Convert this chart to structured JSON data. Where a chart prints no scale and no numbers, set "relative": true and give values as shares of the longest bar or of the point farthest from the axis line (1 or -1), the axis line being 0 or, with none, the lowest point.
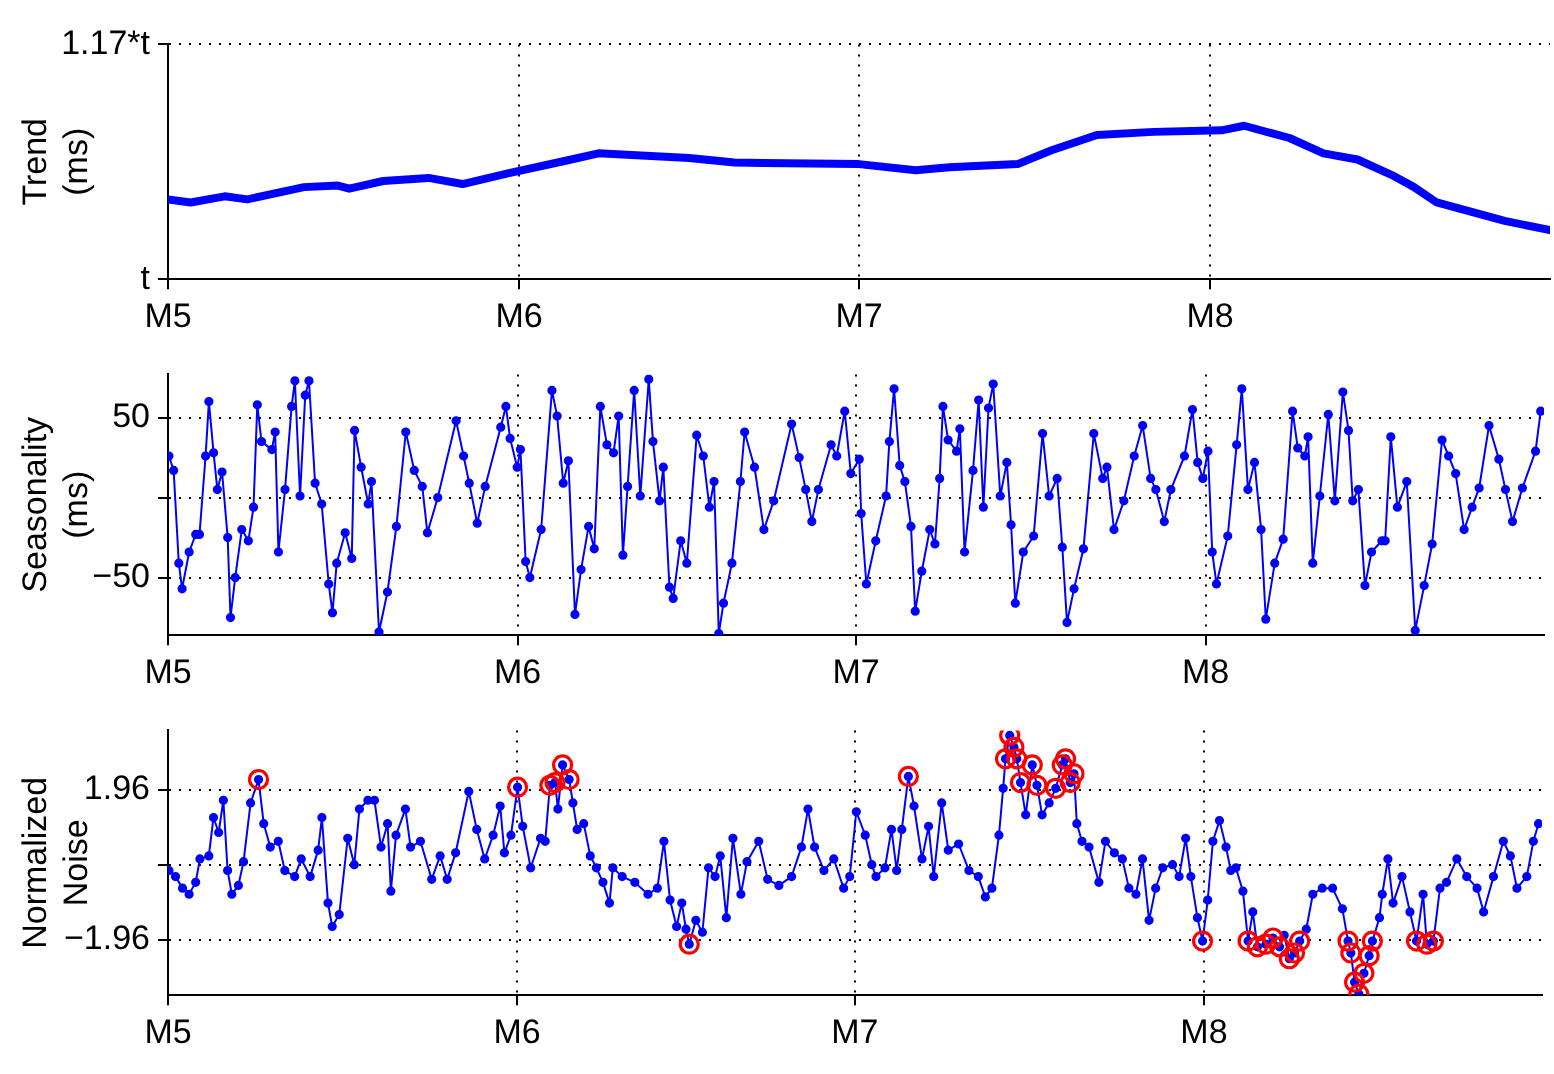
{
  "chart_data": [
    {
      "type": "line",
      "ylabel": "Trend (ms)",
      "xlim": [
        "--05-01",
        "--08-31"
      ],
      "xticks": [
        {
          "value": "--05-01",
          "label": "M5"
        },
        {
          "value": "--06-01",
          "label": "M6"
        },
        {
          "value": "--07-01",
          "label": "M7"
        },
        {
          "value": "--08-01",
          "label": "M8"
        }
      ],
      "relative": true,
      "annotations": [
        "t",
        "1.17*t"
      ],
      "grid": true,
      "marker": "none",
      "series": [
        {
          "color": "#0000ff",
          "x": [
            "--05-01",
            "--05-03",
            "--05-06",
            "--05-08",
            "--05-13",
            "--05-16",
            "--05-17",
            "--05-20",
            "--05-24",
            "--05-27",
            "--05-31",
            "--06-05",
            "--06-08",
            "--06-16",
            "--06-20",
            "--07-01",
            "--07-06",
            "--07-09",
            "--07-15",
            "--07-18",
            "--07-22",
            "--07-27",
            "--08-02",
            "--08-04",
            "--08-08",
            "--08-11",
            "--08-14",
            "--08-17",
            "--08-19",
            "--08-21",
            "--08-27",
            "--08-31"
          ],
          "values": [
            0.52,
            0.5,
            0.54,
            0.52,
            0.6,
            0.61,
            0.59,
            0.64,
            0.66,
            0.62,
            0.69,
            0.77,
            0.82,
            0.79,
            0.76,
            0.75,
            0.71,
            0.73,
            0.75,
            0.84,
            0.94,
            0.96,
            0.97,
            1,
            0.92,
            0.82,
            0.78,
            0.68,
            0.6,
            0.5,
            0.38,
            0.32
          ]
        }
      ]
    },
    {
      "type": "line",
      "ylabel": "Seasonality (ms)",
      "xlim": [
        "--05-01",
        "--08-31"
      ],
      "xticks": [
        {
          "value": "--05-01",
          "label": "M5"
        },
        {
          "value": "--06-01",
          "label": "M6"
        },
        {
          "value": "--07-01",
          "label": "M7"
        },
        {
          "value": "--08-01",
          "label": "M8"
        }
      ],
      "ylim": [
        -86,
        77
      ],
      "yticks": [
        {
          "value": -50,
          "label": "−50"
        },
        {
          "value": 0,
          "label": null
        },
        50
      ],
      "grid": true,
      "marker": "circle",
      "series": [
        {
          "color": "#0000ff",
          "x": [
            "--05-01T02:00",
            "--05-01T12:00",
            "--05-01T23:00",
            "--05-02T06:00",
            "--05-02T21:00",
            "--05-03T11:00",
            "--05-03T19:00",
            "--05-04T08:00",
            "--05-04T15:00",
            "--05-05T01:00",
            "--05-05T09:00",
            "--05-05T19:00",
            "--05-06T07:00",
            "--05-06T13:00",
            "--05-06T23:00",
            "--05-07T13:00",
            "--05-08T03:00",
            "--05-08T14:00",
            "--05-08T22:00",
            "--05-09T07:00",
            "--05-10T05:00",
            "--05-10T12:00",
            "--05-10T19:00",
            "--05-11T09:00",
            "--05-11T23:00",
            "--05-12T06:00",
            "--05-12T17:00",
            "--05-13T04:00",
            "--05-13T12:00",
            "--05-14T01:00",
            "--05-14T15:00",
            "--05-15T06:00",
            "--05-15T14:00",
            "--05-15T23:00",
            "--05-16T17:00",
            "--05-17T07:00",
            "--05-17T13:00",
            "--05-18T03:00",
            "--05-18T18:00",
            "--05-19T01:00",
            "--05-19T17:00",
            "--05-20T11:00",
            "--05-21T06:00",
            "--05-22T02:00",
            "--05-22T20:00",
            "--05-23T13:00",
            "--05-24T00:00",
            "--05-24T22:00",
            "--05-26T13:00",
            "--05-27T05:00",
            "--05-27T17:00",
            "--05-28T10:00",
            "--05-29T03:00",
            "--05-30T12:00",
            "--05-30T23:00",
            "--05-31T08:00",
            "--05-31T23:00",
            "--06-01T06:00",
            "--06-01T17:00",
            "--06-02T02:00",
            "--06-03T02:00",
            "--06-04T01:00",
            "--06-04T12:00",
            "--06-05T01:00",
            "--06-05T12:00",
            "--06-06T02:00",
            "--06-06T15:00",
            "--06-07T07:00",
            "--06-07T19:00",
            "--06-08T08:00",
            "--06-08T22:00",
            "--06-09T12:00",
            "--06-09T23:00",
            "--06-10T08:00",
            "--06-10T18:00",
            "--06-11T08:00",
            "--06-11T21:00",
            "--06-12T15:00",
            "--06-13T00:00",
            "--06-13T14:00",
            "--06-13T22:00",
            "--06-14T11:00",
            "--06-14T19:00",
            "--06-15T11:00",
            "--06-16T00:00",
            "--06-16T21:00",
            "--06-17T11:00",
            "--06-18T00:00",
            "--06-18T10:00",
            "--06-18T20:00",
            "--06-19T06:00",
            "--06-20T00:00",
            "--06-20T18:00",
            "--06-21T03:00",
            "--06-22T00:00",
            "--06-22T20:00",
            "--06-23T17:00",
            "--06-25T07:00",
            "--06-25T23:00",
            "--06-26T13:00",
            "--06-27T02:00",
            "--06-27T16:00",
            "--06-28T19:00",
            "--06-29T07:00",
            "--06-30T00:00",
            "--06-30T13:00",
            "--07-01T07:00",
            "--07-01T11:00",
            "--07-01T22:00",
            "--07-02T18:00",
            "--07-03T16:00",
            "--07-03T23:00",
            "--07-04T09:00",
            "--07-04T21:00",
            "--07-05T08:00",
            "--07-05T21:00",
            "--07-06T06:00",
            "--07-06T20:00",
            "--07-07T13:00",
            "--07-08T00:00",
            "--07-08T10:00",
            "--07-08T17:00",
            "--07-09T04:00",
            "--07-09T22:00",
            "--07-10T05:00",
            "--07-10T15:00",
            "--07-11T09:00",
            "--07-11T21:00",
            "--07-12T07:00",
            "--07-12T18:00",
            "--07-13T04:00",
            "--07-13T19:00",
            "--07-14T09:00",
            "--07-14T18:00",
            "--07-15T03:00",
            "--07-15T20:00",
            "--07-16T18:00",
            "--07-17T13:00",
            "--07-18T03:00",
            "--07-18T20:00",
            "--07-19T07:00",
            "--07-19T17:00",
            "--07-20T08:00",
            "--07-21T04:00",
            "--07-22T02:00",
            "--07-22T21:00",
            "--07-23T06:00",
            "--07-23T21:00",
            "--07-24T18:00",
            "--07-25T16:00",
            "--07-26T10:00",
            "--07-27T03:00",
            "--07-27T14:00",
            "--07-28T08:00",
            "--07-28T22:00",
            "--07-30T03:00",
            "--07-30T20:00",
            "--07-31T07:00",
            "--07-31T18:00",
            "--08-01T05:00",
            "--08-01T14:00",
            "--08-01T23:00",
            "--08-02T23:00",
            "--08-03T18:00",
            "--08-04T05:00",
            "--08-04T18:00",
            "--08-05T08:00",
            "--08-05T22:00",
            "--08-06T08:00",
            "--08-07T03:00",
            "--08-07T21:00",
            "--08-08T17:00",
            "--08-09T04:00",
            "--08-09T19:00",
            "--08-10T02:00",
            "--08-10T12:00",
            "--08-11T03:00",
            "--08-11T21:00",
            "--08-12T11:00",
            "--08-13T04:00",
            "--08-13T16:00",
            "--08-14T01:00",
            "--08-14T13:00",
            "--08-15T03:00",
            "--08-15T17:00",
            "--08-16T15:00",
            "--08-16T22:00",
            "--08-17T10:00",
            "--08-18T00:00",
            "--08-18T20:00",
            "--08-19T14:00",
            "--08-20T09:00",
            "--08-21T02:00",
            "--08-21T23:00",
            "--08-22T13:00",
            "--08-23T04:00",
            "--08-23T22:00",
            "--08-24T15:00",
            "--08-25T06:00",
            "--08-26T03:00",
            "--08-27T00:00",
            "--08-27T14:00",
            "--08-28T05:00",
            "--08-29T02:00",
            "--08-30T06:00",
            "--08-30T17:00"
          ],
          "values": [
            26,
            17,
            -41,
            -57,
            -34,
            -23,
            -23,
            26,
            60,
            28,
            5,
            16,
            -25,
            -75,
            -50,
            -20,
            -27,
            -6,
            58,
            35,
            30,
            41,
            -34,
            5,
            57,
            73,
            1,
            64,
            73,
            9,
            -4,
            -54,
            -72,
            -41,
            -22,
            -38,
            42,
            19,
            -4,
            10,
            -84,
            -59,
            -18,
            41,
            17,
            7,
            -22,
            0,
            48,
            26,
            9,
            -16,
            7,
            44,
            57,
            37,
            19,
            30,
            -40,
            -50,
            -20,
            67,
            51,
            9,
            23,
            -73,
            -45,
            -18,
            -32,
            57,
            33,
            28,
            51,
            -36,
            7,
            67,
            1,
            74,
            35,
            -2,
            19,
            -56,
            -63,
            -27,
            -41,
            39,
            26,
            -6,
            10,
            -85,
            -66,
            -41,
            10,
            41,
            19,
            -20,
            -2,
            46,
            25,
            5,
            -15,
            5,
            33,
            26,
            54,
            15,
            24,
            -10,
            -54,
            -27,
            1,
            35,
            68,
            20,
            10,
            -18,
            -71,
            -46,
            -20,
            -29,
            12,
            57,
            36,
            29,
            43,
            -34,
            17,
            61,
            -6,
            56,
            71,
            1,
            22,
            -17,
            -66,
            -34,
            -24,
            40,
            1,
            12,
            -31,
            -78,
            -57,
            -32,
            40,
            12,
            19,
            -20,
            -2,
            26,
            45,
            12,
            5,
            -15,
            5,
            26,
            55,
            22,
            12,
            29,
            -34,
            -54,
            -24,
            33,
            68,
            5,
            22,
            -20,
            -76,
            -41,
            -26,
            54,
            31,
            26,
            38,
            -41,
            1,
            52,
            -2,
            66,
            42,
            -2,
            5,
            -55,
            -34,
            -27,
            -27,
            38,
            -6,
            10,
            -83,
            -55,
            -29,
            36,
            26,
            15,
            -20,
            -6,
            6,
            45,
            24,
            5,
            -15,
            6,
            29,
            54
          ]
        }
      ]
    },
    {
      "type": "line",
      "ylabel": "Normalized Noise",
      "xlim": [
        "--05-01",
        "--08-31"
      ],
      "xticks": [
        {
          "value": "--05-01",
          "label": "M5"
        },
        {
          "value": "--06-01",
          "label": "M6"
        },
        {
          "value": "--07-01",
          "label": "M7"
        },
        {
          "value": "--08-01",
          "label": "M8"
        }
      ],
      "ylim": [
        -3.4,
        3.5
      ],
      "yticks": [
        {
          "value": -1.96,
          "label": "−1.96"
        },
        {
          "value": 0,
          "label": null
        },
        1.96
      ],
      "grid": true,
      "marker": "circle",
      "series": [
        {
          "color": "#0000ff",
          "x": [
            "--05-01T02:00",
            "--05-01T16:00",
            "--05-02T07:00",
            "--05-02T21:00",
            "--05-03T11:00",
            "--05-03T20:00",
            "--05-04T15:00",
            "--05-05T01:00",
            "--05-05T12:00",
            "--05-05T22:00",
            "--05-06T07:00",
            "--05-06T16:00",
            "--05-07T06:00",
            "--05-07T17:00",
            "--05-08T08:00",
            "--05-09T01:00",
            "--05-09T12:00",
            "--05-10T02:00",
            "--05-10T19:00",
            "--05-11T09:00",
            "--05-12T06:00",
            "--05-12T20:00",
            "--05-13T15:00",
            "--05-14T08:00",
            "--05-14T16:00",
            "--05-15T05:00",
            "--05-15T14:00",
            "--05-16T05:00",
            "--05-16T23:00",
            "--05-17T13:00",
            "--05-18T00:00",
            "--05-18T18:00",
            "--05-19T08:00",
            "--05-19T22:00",
            "--05-20T12:00",
            "--05-20T19:00",
            "--05-21T06:00",
            "--05-22T02:00",
            "--05-22T13:00",
            "--05-23T10:00",
            "--05-24T10:00",
            "--05-25T04:00",
            "--05-25T19:00",
            "--05-26T13:00",
            "--05-27T17:00",
            "--05-28T10:00",
            "--05-29T03:00",
            "--05-29T21:00",
            "--05-30T12:00",
            "--05-30T21:00",
            "--05-31T11:00",
            "--06-01T01:00",
            "--06-01T12:00",
            "--06-02T05:00",
            "--06-03T02:00",
            "--06-03T12:00",
            "--06-03T22:00",
            "--06-04T09:00",
            "--06-04T15:00",
            "--06-05T01:00",
            "--06-05T15:00",
            "--06-05T23:00",
            "--06-06T08:00",
            "--06-06T22:00",
            "--06-07T12:00",
            "--06-08T01:00",
            "--06-08T15:00",
            "--06-09T05:00",
            "--06-09T12:00",
            "--06-10T08:00",
            "--06-11T11:00",
            "--06-12T15:00",
            "--06-13T11:00",
            "--06-14T01:00",
            "--06-14T14:00",
            "--06-15T04:00",
            "--06-15T15:00",
            "--06-16T00:00",
            "--06-16T07:00",
            "--06-16T21:00",
            "--06-17T11:00",
            "--06-18T00:00",
            "--06-18T14:00",
            "--06-19T01:00",
            "--06-19T14:00",
            "--06-20T04:00",
            "--06-20T21:00",
            "--06-21T10:00",
            "--06-22T11:00",
            "--06-23T06:00",
            "--06-24T06:00",
            "--06-25T09:00",
            "--06-26T06:00",
            "--06-26T20:00",
            "--06-27T10:00",
            "--06-28T06:00",
            "--06-29T03:00",
            "--06-30T00:00",
            "--06-30T13:00",
            "--07-01T03:00",
            "--07-01T22:00",
            "--07-02T12:00",
            "--07-02T21:00",
            "--07-03T16:00",
            "--07-04T06:00",
            "--07-04T17:00",
            "--07-05T04:00",
            "--07-05T18:00",
            "--07-06T06:00",
            "--07-06T23:00",
            "--07-07T13:00",
            "--07-08T00:00",
            "--07-08T17:00",
            "--07-09T07:00",
            "--07-10T05:00",
            "--07-11T03:00",
            "--07-11T23:00",
            "--07-12T14:00",
            "--07-13T04:00",
            "--07-13T19:00",
            "--07-14T04:00",
            "--07-14T09:00",
            "--07-14T18:00",
            "--07-15T03:00",
            "--07-15T09:00",
            "--07-15T17:00",
            "--07-16T04:00",
            "--07-16T18:00",
            "--07-17T04:00",
            "--07-17T15:00",
            "--07-18T06:00",
            "--07-18T20:00",
            "--07-19T10:00",
            "--07-19T17:00",
            "--07-20T03:00",
            "--07-20T11:00",
            "--07-20T17:00",
            "--07-21T04:00",
            "--07-21T19:00",
            "--07-22T16:00",
            "--07-23T06:00",
            "--07-24T01:00",
            "--07-24T18:00",
            "--07-25T08:00",
            "--07-25T23:00",
            "--07-26T13:00",
            "--07-27T03:00",
            "--07-27T17:00",
            "--07-28T08:00",
            "--07-29T05:00",
            "--07-29T19:00",
            "--07-30T09:00",
            "--07-30T20:00",
            "--07-31T10:00",
            "--07-31T21:00",
            "--08-01T08:00",
            "--08-01T19:00",
            "--08-02T09:00",
            "--08-02T23:00",
            "--08-03T09:00",
            "--08-03T20:00",
            "--08-04T11:00",
            "--08-04T22:00",
            "--08-05T08:00",
            "--08-05T18:00",
            "--08-06T12:00",
            "--08-07T03:00",
            "--08-07T17:00",
            "--08-08T03:00",
            "--08-08T14:00",
            "--08-09T01:00",
            "--08-09T12:00",
            "--08-10T02:00",
            "--08-10T16:00",
            "--08-11T12:00",
            "--08-12T10:00",
            "--08-13T07:00",
            "--08-13T19:00",
            "--08-14T01:00",
            "--08-14T09:00",
            "--08-14T18:00",
            "--08-15T05:00",
            "--08-15T16:00",
            "--08-15T23:00",
            "--08-16T14:00",
            "--08-16T20:00",
            "--08-17T08:00",
            "--08-17T19:00",
            "--08-18T14:00",
            "--08-19T07:00",
            "--08-19T21:00",
            "--08-20T11:00",
            "--08-20T19:00",
            "--08-21T09:00",
            "--08-21T23:00",
            "--08-22T13:00",
            "--08-23T11:00",
            "--08-24T08:00",
            "--08-25T06:00",
            "--08-25T20:00",
            "--08-26T17:00",
            "--08-27T14:00",
            "--08-28T05:00",
            "--08-28T19:00",
            "--08-29T16:00",
            "--08-30T06:00",
            "--08-30T17:00"
          ],
          "values": [
            -0.15,
            -0.31,
            -0.61,
            -0.77,
            -0.46,
            0.15,
            0.23,
            1.23,
            0.84,
            1.68,
            -0.15,
            -0.77,
            -0.54,
            0.08,
            1.61,
            2.22,
            1.07,
            0.46,
            0.61,
            -0.15,
            -0.31,
            0.15,
            -0.31,
            0.38,
            1.23,
            -1.0,
            -1.61,
            -1.3,
            0.69,
            0.0,
            1.45,
            1.68,
            1.68,
            0.46,
            1.07,
            -0.69,
            0.77,
            1.45,
            0.46,
            0.61,
            -0.38,
            0.23,
            -0.38,
            0.31,
            1.91,
            0.92,
            0.15,
            0.77,
            1.53,
            0.31,
            0.77,
            2.02,
            1.0,
            -0.08,
            0.69,
            0.61,
            2.07,
            2.14,
            1.45,
            2.6,
            2.22,
            1.61,
            0.92,
            1.07,
            0.23,
            -0.08,
            -0.46,
            -1.0,
            -0.08,
            -0.31,
            -0.46,
            -0.77,
            -0.61,
            0.61,
            -0.92,
            -1.61,
            -1.0,
            -1.68,
            -2.07,
            -1.45,
            -1.76,
            -0.08,
            -0.31,
            0.23,
            -1.38,
            0.69,
            -0.77,
            0.08,
            0.61,
            -0.38,
            -0.54,
            -0.31,
            0.46,
            1.45,
            0.46,
            -0.15,
            0.15,
            -0.61,
            -0.31,
            1.38,
            0.77,
            0.0,
            -0.31,
            -0.08,
            0.92,
            -0.15,
            0.92,
            2.3,
            1.53,
            0.15,
            1.0,
            -0.31,
            1.61,
            0.38,
            0.54,
            -0.15,
            -0.31,
            -0.84,
            -0.61,
            0.77,
            1.99,
            2.76,
            3.37,
            3.06,
            2.76,
            2.14,
            1.3,
            2.6,
            2.07,
            1.3,
            1.61,
            1.99,
            2.6,
            2.76,
            2.14,
            2.37,
            1.07,
            0.61,
            0.46,
            -0.46,
            0.61,
            0.31,
            0.15,
            -0.61,
            -0.77,
            0.15,
            -1.45,
            -0.61,
            -0.08,
            0.0,
            -0.31,
            0.69,
            -0.31,
            -1.38,
            -1.99,
            -0.92,
            0.61,
            1.15,
            0.46,
            -0.15,
            -0.08,
            -0.69,
            -1.99,
            -1.23,
            -2.14,
            -2.07,
            -1.91,
            -2.14,
            -1.84,
            -2.45,
            -2.3,
            -1.99,
            -1.68,
            -0.77,
            -0.61,
            -0.61,
            -1.15,
            -1.99,
            -2.3,
            -3.06,
            -3.37,
            -2.83,
            -2.37,
            -1.99,
            -1.38,
            -0.77,
            0.15,
            -1.0,
            -0.31,
            -1.23,
            -1.99,
            -0.77,
            -2.07,
            -1.99,
            -0.61,
            -0.46,
            0.15,
            -0.31,
            -0.61,
            -1.23,
            -0.31,
            0.61,
            0.23,
            -0.61,
            -0.31,
            0.61,
            1.07
          ]
        },
        {
          "type": "scatter",
          "color": "#ff0000",
          "marker": "circle",
          "x": [
            "--05-09T01:00",
            "--06-01T01:00",
            "--06-03T22:00",
            "--06-04T09:00",
            "--06-05T01:00",
            "--06-05T15:00",
            "--06-16T07:00",
            "--07-05T18:00",
            "--07-14T09:00",
            "--07-14T18:00",
            "--07-15T03:00",
            "--07-15T09:00",
            "--07-15T17:00",
            "--07-16T18:00",
            "--07-17T04:00",
            "--07-18T20:00",
            "--07-19T10:00",
            "--07-19T17:00",
            "--07-20T03:00",
            "--07-20T11:00",
            "--07-31T21:00",
            "--08-04T22:00",
            "--08-05T18:00",
            "--08-06T12:00",
            "--08-07T03:00",
            "--08-07T17:00",
            "--08-08T14:00",
            "--08-09T01:00",
            "--08-09T12:00",
            "--08-13T19:00",
            "--08-14T01:00",
            "--08-14T09:00",
            "--08-14T18:00",
            "--08-15T05:00",
            "--08-15T16:00",
            "--08-15T23:00",
            "--08-19T21:00",
            "--08-20T19:00",
            "--08-21T09:00"
          ],
          "values": [
            2.22,
            2.02,
            2.07,
            2.14,
            2.6,
            2.22,
            -2.07,
            2.3,
            2.76,
            3.37,
            3.06,
            2.76,
            2.14,
            2.6,
            2.07,
            1.99,
            2.6,
            2.76,
            2.14,
            2.37,
            -1.99,
            -1.99,
            -2.14,
            -2.07,
            -1.91,
            -2.14,
            -2.45,
            -2.3,
            -1.99,
            -1.99,
            -2.3,
            -3.06,
            -3.37,
            -2.83,
            -2.37,
            -1.99,
            -1.99,
            -2.07,
            -1.99
          ]
        }
      ]
    }
  ]
}
